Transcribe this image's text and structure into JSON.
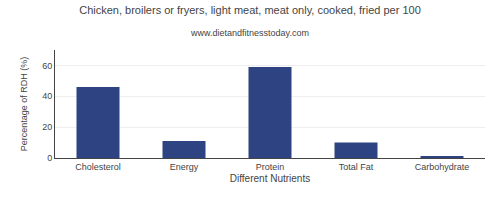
{
  "chart_data": {
    "type": "bar",
    "title": "Chicken, broilers or fryers, light meat, meat only, cooked, fried per 100",
    "subtitle": "www.dietandfitnesstoday.com",
    "xlabel": "Different Nutrients",
    "ylabel": "Percentage of RDH (%)",
    "categories": [
      "Cholesterol",
      "Energy",
      "Protein",
      "Total Fat",
      "Carbohydrate"
    ],
    "values": [
      46,
      11,
      59,
      10,
      1
    ],
    "color": "#2e4482",
    "ylim": [
      0,
      70
    ],
    "yticks": [
      0,
      20,
      40,
      60
    ],
    "grid": true
  }
}
